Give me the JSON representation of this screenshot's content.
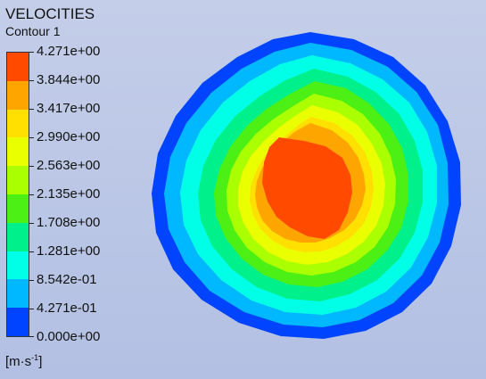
{
  "title": "VELOCITIES",
  "subtitle": "Contour 1",
  "units": "[m·s",
  "units_exp": "-1",
  "units_close": "]",
  "legend": {
    "labels": [
      "4.271e+00",
      "3.844e+00",
      "3.417e+00",
      "2.990e+00",
      "2.563e+00",
      "2.135e+00",
      "1.708e+00",
      "1.281e+00",
      "8.542e-01",
      "4.271e-01",
      "0.000e+00"
    ],
    "colors": [
      "#ff4a00",
      "#ffa500",
      "#ffe000",
      "#eaff00",
      "#aaff00",
      "#4cf014",
      "#00f08c",
      "#00ffe6",
      "#00b8ff",
      "#0044ff"
    ]
  },
  "contour_colors": {
    "band_0": "#0044ff",
    "band_1": "#00b8ff",
    "band_2": "#00ffe6",
    "band_3": "#00f08c",
    "band_4": "#4cf014",
    "band_5": "#aaff00",
    "band_6": "#eaff00",
    "band_7": "#ffe000",
    "band_8": "#ffa500",
    "band_9": "#ff4a00"
  }
}
